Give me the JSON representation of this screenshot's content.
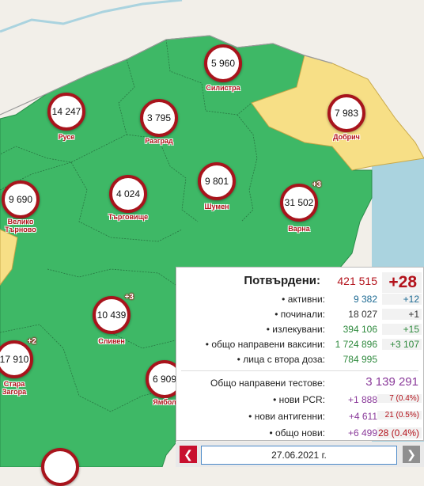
{
  "regions": [
    {
      "key": "silistra",
      "name": "Силистра",
      "count": "5 960",
      "plus": ""
    },
    {
      "key": "ruse",
      "name": "Русе",
      "count": "14 247",
      "plus": ""
    },
    {
      "key": "razgrad",
      "name": "Разград",
      "count": "3 795",
      "plus": ""
    },
    {
      "key": "dobrich",
      "name": "Добрич",
      "count": "7 983",
      "plus": ""
    },
    {
      "key": "veliko",
      "name": "Велико\nТърново",
      "count": "9 690",
      "plus": ""
    },
    {
      "key": "targovishte",
      "name": "Търговище",
      "count": "4 024",
      "plus": ""
    },
    {
      "key": "shumen",
      "name": "Шумен",
      "count": "9 801",
      "plus": ""
    },
    {
      "key": "varna",
      "name": "Варна",
      "count": "31 502",
      "plus": "+3"
    },
    {
      "key": "sliven",
      "name": "Сливен",
      "count": "10 439",
      "plus": "+3"
    },
    {
      "key": "stara",
      "name": "Стара\nЗагора",
      "count": "17 910",
      "plus": "+2"
    },
    {
      "key": "yambol",
      "name": "Ямбол",
      "count": "6 909",
      "plus": ""
    },
    {
      "key": "bottom",
      "name": "",
      "count": "",
      "plus": ""
    }
  ],
  "colors": {
    "green": "#3eb866",
    "yellow": "#f7df86",
    "sea": "#aad3df",
    "land": "#f2efe9",
    "marker_border": "#a8141c"
  },
  "stats": {
    "confirmed_label": "Потвърдени:",
    "confirmed_value": "421 515",
    "confirmed_delta": "+28",
    "rows": [
      {
        "label": "• активни:",
        "value": "9 382",
        "delta": "+12",
        "color": "#1d6a93"
      },
      {
        "label": "• починали:",
        "value": "18 027",
        "delta": "+1",
        "color": "#333333"
      },
      {
        "label": "• излекувани:",
        "value": "394 106",
        "delta": "+15",
        "color": "#2f8a3e"
      },
      {
        "label": "• общо направени ваксини:",
        "value": "1 724 896",
        "delta": "+3 107",
        "color": "#2f8a3e"
      },
      {
        "label": "• лица с втора доза:",
        "value": "784 995",
        "delta": "",
        "color": "#2f8a3e"
      }
    ],
    "tests_label": "Общо направени тестове:",
    "tests_value": "3 139 291",
    "test_rows": [
      {
        "label": "• нови PCR:",
        "value": "+1 888",
        "delta": "7 (0.4%)"
      },
      {
        "label": "• нови антигенни:",
        "value": "+4 611",
        "delta": "21 (0.5%)"
      },
      {
        "label": "• общо нови:",
        "value": "+6 499",
        "delta": "28 (0.4%)"
      }
    ]
  },
  "date": "27.06.2021 г.",
  "nav": {
    "prev_icon": "chevron-left-icon",
    "next_icon": "chevron-right-icon"
  }
}
